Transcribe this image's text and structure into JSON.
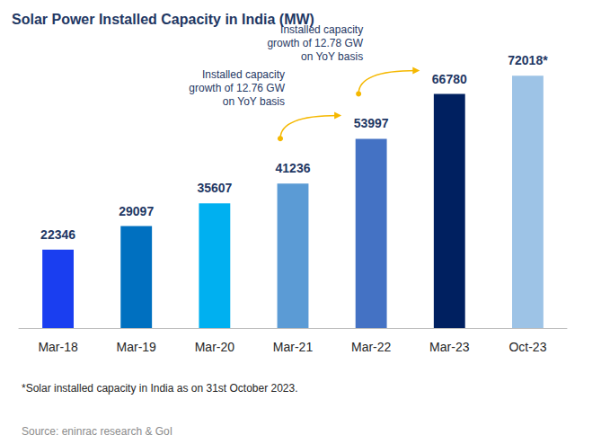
{
  "chart_data": {
    "type": "bar",
    "title": "Solar Power Installed Capacity in India (MW)",
    "categories": [
      "Mar-18",
      "Mar-19",
      "Mar-20",
      "Mar-21",
      "Mar-22",
      "Mar-23",
      "Oct-23"
    ],
    "values": [
      22346,
      29097,
      35607,
      41236,
      53997,
      66780,
      72018
    ],
    "value_labels": [
      "22346",
      "29097",
      "35607",
      "41236",
      "53997",
      "66780",
      "72018*"
    ],
    "colors": [
      "#1a3ef0",
      "#0070c0",
      "#00b0f0",
      "#5b9bd5",
      "#4472c4",
      "#002060",
      "#9dc3e6"
    ],
    "ylim": [
      0,
      80000
    ],
    "yticks": [
      0,
      80000
    ],
    "grid": false,
    "tick_labels": "x",
    "data_labels": true,
    "annotations": [
      {
        "text": "Installed capacity\ngrowth of 12.76 GW\non YoY basis",
        "from": "Mar-21",
        "to": "Mar-22"
      },
      {
        "text": "Installed capacity\ngrowth of 12.78 GW\non YoY basis",
        "from": "Mar-22",
        "to": "Mar-23"
      }
    ],
    "footnote": "*Solar installed capacity in India as on 31st October 2023.",
    "source": "Source: eninrac research & GoI"
  }
}
